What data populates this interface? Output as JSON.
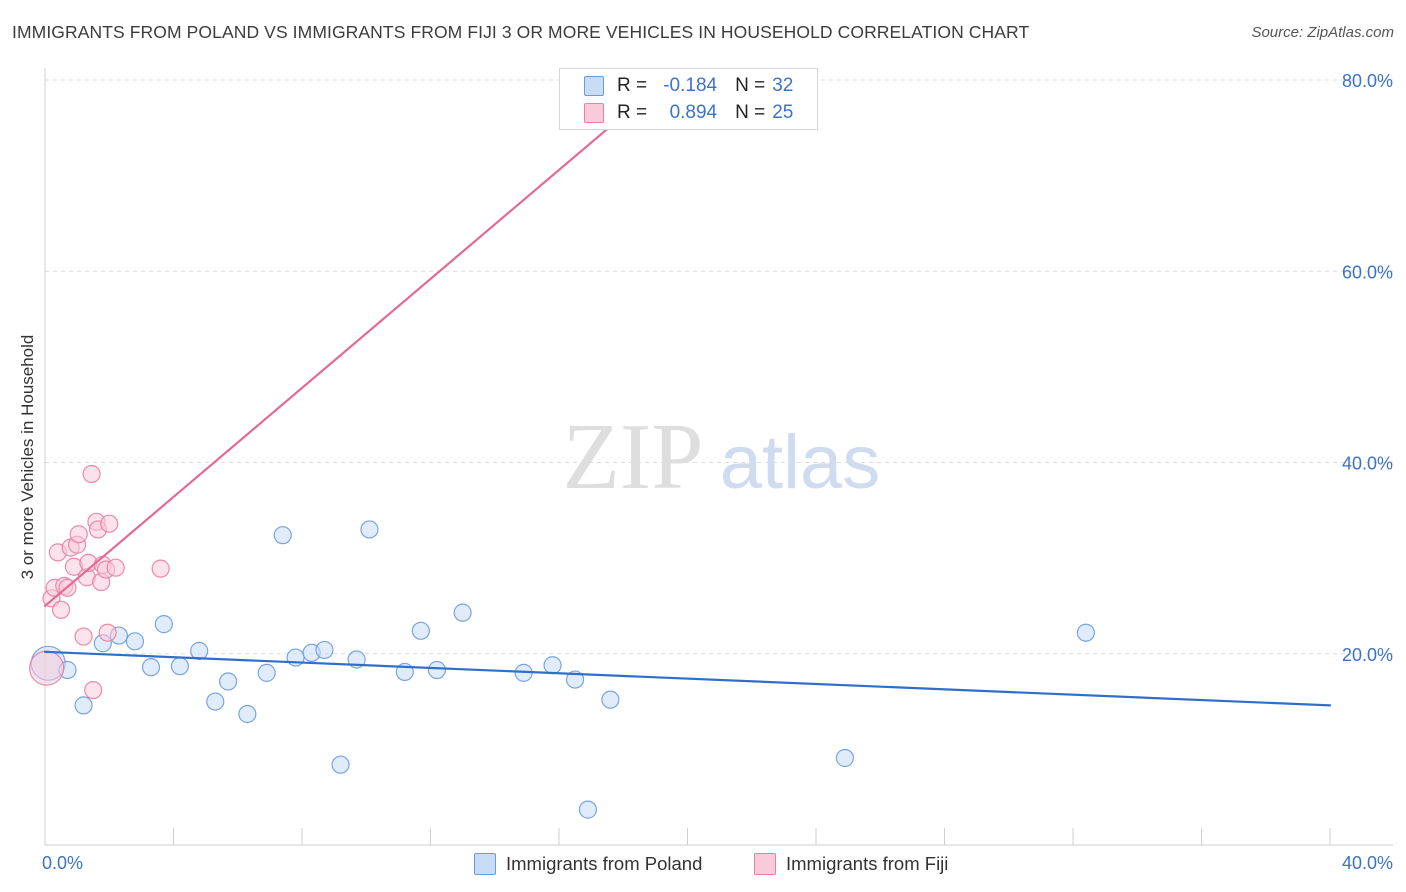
{
  "title": "IMMIGRANTS FROM POLAND VS IMMIGRANTS FROM FIJI 3 OR MORE VEHICLES IN HOUSEHOLD CORRELATION CHART",
  "source": "Source: ZipAtlas.com",
  "watermark": {
    "zip": "ZIP",
    "atlas": "atlas"
  },
  "legend": {
    "r_label": "R =",
    "n_label": "N =",
    "poland": {
      "r": "-0.184",
      "n": "32"
    },
    "fiji": {
      "r": "0.894",
      "n": "25"
    }
  },
  "chart_data": {
    "type": "scatter",
    "title": "IMMIGRANTS FROM POLAND VS IMMIGRANTS FROM FIJI 3 OR MORE VEHICLES IN HOUSEHOLD CORRELATION CHART",
    "xlabel": "",
    "ylabel": "3 or more Vehicles in Household",
    "xlim": [
      0,
      40
    ],
    "ylim": [
      0,
      80
    ],
    "x_tick_labels": [
      {
        "value": 0,
        "label": "0.0%"
      },
      {
        "value": 40,
        "label": "40.0%"
      }
    ],
    "y_tick_labels": [
      {
        "value": 20,
        "label": "20.0%"
      },
      {
        "value": 40,
        "label": "40.0%"
      },
      {
        "value": 60,
        "label": "60.0%"
      },
      {
        "value": 80,
        "label": "80.0%"
      }
    ],
    "legend_position": "bottom",
    "grid": true,
    "series": [
      {
        "name": "Immigrants from Poland",
        "color": "#6a9be0",
        "fill": "#c9dcf5",
        "trend": {
          "x1": 0.0,
          "y1": 20.2,
          "x2": 40.0,
          "y2": 14.6
        },
        "points": [
          {
            "x": 0.1,
            "y": 19.0,
            "large": true
          },
          {
            "x": 0.7,
            "y": 18.3
          },
          {
            "x": 1.2,
            "y": 14.6
          },
          {
            "x": 1.8,
            "y": 21.1
          },
          {
            "x": 2.3,
            "y": 21.9
          },
          {
            "x": 2.8,
            "y": 21.3
          },
          {
            "x": 3.3,
            "y": 18.6
          },
          {
            "x": 3.7,
            "y": 23.1
          },
          {
            "x": 4.2,
            "y": 18.7
          },
          {
            "x": 4.8,
            "y": 20.3
          },
          {
            "x": 5.3,
            "y": 15.0
          },
          {
            "x": 5.7,
            "y": 17.1
          },
          {
            "x": 6.3,
            "y": 13.7
          },
          {
            "x": 6.9,
            "y": 18.0
          },
          {
            "x": 7.4,
            "y": 32.4
          },
          {
            "x": 7.8,
            "y": 19.6
          },
          {
            "x": 8.3,
            "y": 20.1
          },
          {
            "x": 8.7,
            "y": 20.4
          },
          {
            "x": 9.2,
            "y": 8.4
          },
          {
            "x": 9.7,
            "y": 19.4
          },
          {
            "x": 10.1,
            "y": 33.0
          },
          {
            "x": 11.2,
            "y": 18.1
          },
          {
            "x": 11.7,
            "y": 22.4
          },
          {
            "x": 12.2,
            "y": 18.3
          },
          {
            "x": 13.0,
            "y": 24.3
          },
          {
            "x": 14.9,
            "y": 18.0
          },
          {
            "x": 15.8,
            "y": 18.8
          },
          {
            "x": 16.5,
            "y": 17.3
          },
          {
            "x": 16.9,
            "y": 3.7
          },
          {
            "x": 17.6,
            "y": 15.2
          },
          {
            "x": 24.9,
            "y": 9.1
          },
          {
            "x": 32.4,
            "y": 22.2
          }
        ]
      },
      {
        "name": "Immigrants from Fiji",
        "color": "#e97fa1",
        "fill": "#f9cad9",
        "trend": {
          "x1": 0.0,
          "y1": 25.0,
          "x2": 19.3,
          "y2": 80.0
        },
        "points": [
          {
            "x": 0.05,
            "y": 18.5,
            "large": true
          },
          {
            "x": 0.2,
            "y": 25.8
          },
          {
            "x": 0.3,
            "y": 26.9
          },
          {
            "x": 0.4,
            "y": 30.6
          },
          {
            "x": 0.5,
            "y": 24.6
          },
          {
            "x": 0.6,
            "y": 27.1
          },
          {
            "x": 0.7,
            "y": 26.9
          },
          {
            "x": 0.8,
            "y": 31.1
          },
          {
            "x": 0.9,
            "y": 29.1
          },
          {
            "x": 1.0,
            "y": 31.4
          },
          {
            "x": 1.05,
            "y": 32.5
          },
          {
            "x": 1.2,
            "y": 21.8
          },
          {
            "x": 1.3,
            "y": 28.0
          },
          {
            "x": 1.35,
            "y": 29.5
          },
          {
            "x": 1.45,
            "y": 38.8
          },
          {
            "x": 1.5,
            "y": 16.2
          },
          {
            "x": 1.6,
            "y": 33.8
          },
          {
            "x": 1.65,
            "y": 33.0
          },
          {
            "x": 1.75,
            "y": 27.5
          },
          {
            "x": 1.8,
            "y": 29.3
          },
          {
            "x": 1.9,
            "y": 28.8
          },
          {
            "x": 1.95,
            "y": 22.2
          },
          {
            "x": 2.0,
            "y": 33.6
          },
          {
            "x": 2.2,
            "y": 29.0
          },
          {
            "x": 3.6,
            "y": 28.9
          }
        ]
      }
    ]
  }
}
